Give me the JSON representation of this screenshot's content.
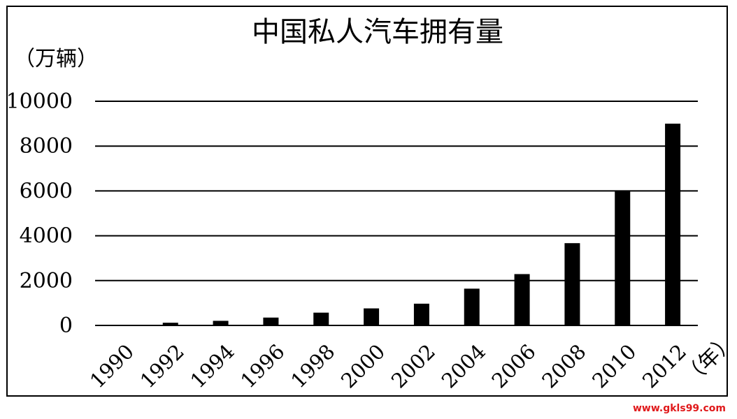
{
  "watermark": "www.gkls99.com",
  "chart_data": {
    "type": "bar",
    "title": "中国私人汽车拥有量",
    "ylabel": "（万辆）",
    "xlabel": "（年）",
    "categories": [
      "1990",
      "1992",
      "1994",
      "1996",
      "1998",
      "2000",
      "2002",
      "2004",
      "2006",
      "2008",
      "2010",
      "2012"
    ],
    "values": [
      0,
      120,
      205,
      350,
      570,
      760,
      970,
      1640,
      2290,
      3670,
      6000,
      9000
    ],
    "ylim": [
      0,
      10000
    ],
    "yticks": [
      "0",
      "2000",
      "4000",
      "6000",
      "8000",
      "10000"
    ],
    "grid": true,
    "bar_color": "#000000",
    "legend": "none"
  }
}
